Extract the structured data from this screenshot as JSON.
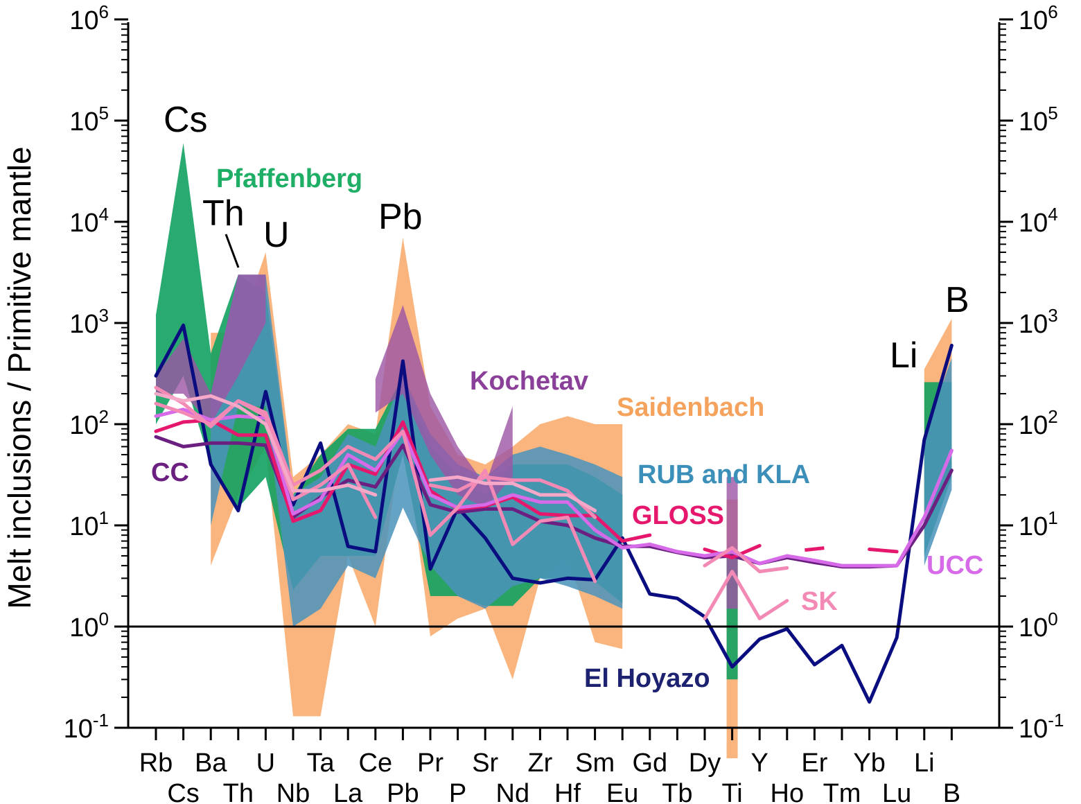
{
  "chart_data": {
    "type": "line",
    "ylabel": "Melt inclusions / Primitive mantle",
    "yscale": "log",
    "ylim_exp": [
      -1,
      6
    ],
    "y_ticks": [
      {
        "base": "10",
        "exp": "-1"
      },
      {
        "base": "10",
        "exp": "0"
      },
      {
        "base": "10",
        "exp": "1"
      },
      {
        "base": "10",
        "exp": "2"
      },
      {
        "base": "10",
        "exp": "3"
      },
      {
        "base": "10",
        "exp": "4"
      },
      {
        "base": "10",
        "exp": "5"
      },
      {
        "base": "10",
        "exp": "6"
      }
    ],
    "reference_line": 1,
    "categories": [
      "Rb",
      "Cs",
      "Ba",
      "Th",
      "U",
      "Nb",
      "Ta",
      "La",
      "Ce",
      "Pb",
      "Pr",
      "P",
      "Sr",
      "Nd",
      "Zr",
      "Hf",
      "Sm",
      "Eu",
      "Gd",
      "Tb",
      "Dy",
      "Ti",
      "Y",
      "Ho",
      "Er",
      "Tm",
      "Yb",
      "Lu",
      "Li",
      "B"
    ],
    "bands": [
      {
        "name": "Saidenbach",
        "color": "#f9a867",
        "opacity": 0.85,
        "upper": [
          null,
          null,
          800,
          800,
          5000,
          30,
          50,
          100,
          80,
          7000,
          150,
          50,
          40,
          60,
          100,
          120,
          100,
          100,
          null,
          null,
          null,
          18,
          null,
          null,
          null,
          null,
          null,
          null,
          350,
          1100
        ],
        "lower": [
          null,
          null,
          4,
          20,
          60,
          0.13,
          0.13,
          5,
          1,
          100,
          0.8,
          1.2,
          1.5,
          0.3,
          3,
          5,
          0.7,
          0.6,
          null,
          null,
          null,
          0.05,
          null,
          null,
          null,
          null,
          null,
          null,
          10,
          40
        ]
      },
      {
        "name": "Pfaffenberg",
        "color": "#12a160",
        "opacity": 0.9,
        "upper": [
          1200,
          60000,
          500,
          3000,
          2000,
          20,
          50,
          90,
          90,
          300,
          60,
          30,
          20,
          40,
          40,
          40,
          30,
          20,
          null,
          null,
          null,
          5,
          null,
          null,
          null,
          null,
          null,
          null,
          260,
          260
        ],
        "lower": [
          100,
          300,
          40,
          15,
          30,
          2.3,
          5,
          5,
          5,
          50,
          2,
          2,
          1.6,
          1.6,
          3,
          3,
          2.8,
          1.7,
          null,
          null,
          null,
          0.3,
          null,
          null,
          null,
          null,
          null,
          null,
          5,
          30
        ]
      },
      {
        "name": "RUB and KLA",
        "color": "#4a93bb",
        "opacity": 0.85,
        "upper": [
          null,
          null,
          200,
          3000,
          3000,
          20,
          30,
          80,
          60,
          300,
          80,
          40,
          30,
          50,
          60,
          50,
          40,
          30,
          null,
          null,
          null,
          null,
          null,
          null,
          null,
          null,
          null,
          null,
          80,
          450
        ]
      },
      {
        "name": "Kochetav",
        "color": "#9c55a5",
        "opacity": 0.8,
        "upper": [
          300,
          700,
          200,
          3000,
          3000,
          null,
          null,
          null,
          280,
          1500,
          200,
          60,
          25,
          150,
          null,
          null,
          null,
          null,
          null,
          null,
          null,
          30,
          null,
          null,
          null,
          null,
          null,
          null,
          null,
          null
        ],
        "lower": [
          200,
          200,
          100,
          300,
          1000,
          null,
          null,
          null,
          130,
          200,
          50,
          20,
          15,
          30,
          null,
          null,
          null,
          null,
          null,
          null,
          null,
          1.5,
          null,
          null,
          null,
          null,
          null,
          null,
          null,
          null
        ]
      }
    ],
    "series": [
      {
        "name": "El Hoyazo",
        "color": "#0a0d7f",
        "values": [
          300,
          950,
          40,
          14,
          210,
          16,
          65,
          6.2,
          5.5,
          420,
          3.7,
          15,
          7.5,
          3.0,
          2.7,
          3.0,
          2.9,
          7.5,
          2.1,
          1.9,
          1.25,
          0.4,
          0.75,
          0.95,
          0.42,
          0.65,
          0.18,
          0.78,
          70,
          600
        ]
      },
      {
        "name": "CC",
        "color": "#6b1f80",
        "values": [
          75,
          60,
          65,
          65,
          62,
          12,
          19,
          28,
          24,
          62,
          16,
          13.5,
          14.5,
          14.5,
          11,
          10,
          7.5,
          6.2,
          6.2,
          5.4,
          4.8,
          5.0,
          4.2,
          4.8,
          4.3,
          3.9,
          3.9,
          4.0,
          10,
          35
        ]
      },
      {
        "name": "GLOSS",
        "color": "#e5186e",
        "values": [
          85,
          105,
          110,
          78,
          78,
          11,
          14,
          40,
          32,
          105,
          22,
          14.5,
          15.5,
          19,
          13,
          12.5,
          12.5,
          7,
          8,
          null,
          5.8,
          4.8,
          6.3,
          null,
          5.7,
          null,
          5.8,
          5.5,
          null,
          null
        ]
      },
      {
        "name": "UCC",
        "color": "#d66ae8",
        "values": [
          120,
          140,
          110,
          120,
          115,
          13,
          18,
          50,
          35,
          85,
          20,
          15,
          16,
          20,
          17,
          17,
          9,
          6,
          6.5,
          5.5,
          5.0,
          5.5,
          4.2,
          5.0,
          4.5,
          4.0,
          4.0,
          4.0,
          12,
          55
        ]
      },
      {
        "name": "SK",
        "color": "#f38ab5",
        "values": [
          230,
          160,
          95,
          170,
          130,
          25,
          35,
          60,
          45,
          85,
          8,
          15,
          35,
          6.5,
          11,
          12,
          2.8,
          null,
          null,
          null,
          1.2,
          3.5,
          1.2,
          1.8,
          null,
          null,
          null,
          null,
          null,
          null
        ]
      },
      {
        "name": "SK",
        "color": "#f38ab5",
        "values": [
          160,
          130,
          100,
          170,
          120,
          18,
          25,
          40,
          12,
          null,
          25,
          22,
          30,
          28,
          28,
          22,
          12,
          null,
          null,
          null,
          4,
          6,
          3.5,
          3.8,
          null,
          null,
          null,
          null,
          null,
          null
        ]
      },
      {
        "name": "SK",
        "color": "#f6a8c8",
        "values": [
          200,
          170,
          190,
          150,
          100,
          22,
          22,
          25,
          20,
          null,
          28,
          30,
          26,
          26,
          20,
          20,
          14,
          null,
          null,
          null,
          null,
          null,
          null,
          null,
          null,
          null,
          null,
          null,
          null,
          null
        ]
      }
    ],
    "labels": {
      "Pfaffenberg": "Pfaffenberg",
      "Kochetav": "Kochetav",
      "Saidenbach": "Saidenbach",
      "RUB": "RUB and KLA",
      "CC": "CC",
      "GLOSS": "GLOSS",
      "UCC": "UCC",
      "SK": "SK",
      "ElHoyazo": "El Hoyazo"
    },
    "annotations": [
      "Cs",
      "Th",
      "U",
      "Pb",
      "Li",
      "B"
    ],
    "label_colors": {
      "Pfaffenberg": "#1fae66",
      "Kochetav": "#8a3f98",
      "Saidenbach": "#f5a25d",
      "RUB": "#3b8fb8",
      "CC": "#6b1f80",
      "GLOSS": "#e5186e",
      "UCC": "#d66ae8",
      "SK": "#f38ab5",
      "ElHoyazo": "#1c2270"
    }
  }
}
